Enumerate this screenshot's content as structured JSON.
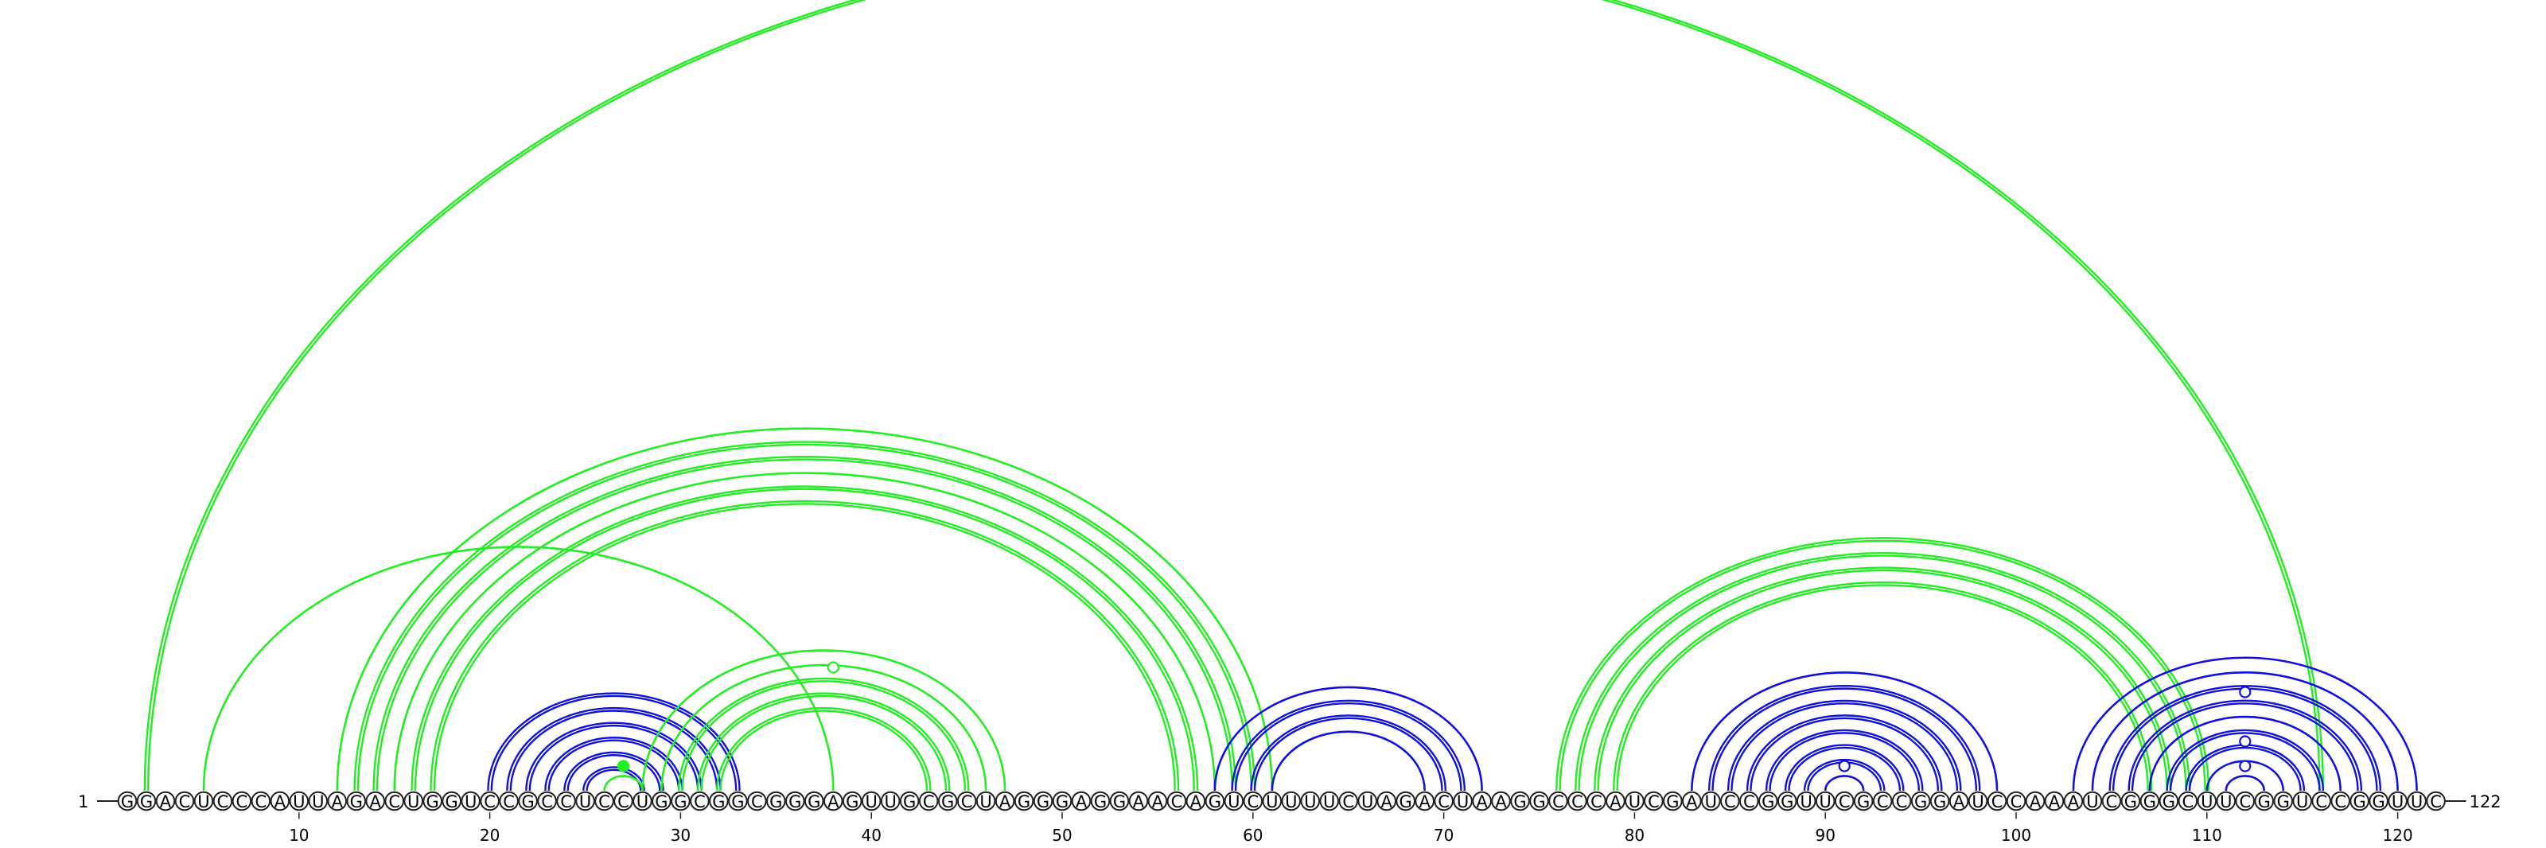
{
  "chart_data": {
    "type": "arc-diagram",
    "sequence": "GGACUCCCAUUAGACUGGUCCGCCUCCUGGCGGCGGGAGUUGCGCUAGGGAGGAACAGUCUUUUCUAGACUAAGGCCCAUCGAUCCGGUUCGCCGGAUCCAAAUCGGGCUUCGGUCCGGUUC",
    "start_label": "1",
    "end_label": "122",
    "ticks": [
      10,
      20,
      30,
      40,
      50,
      60,
      70,
      80,
      90,
      100,
      110,
      120
    ],
    "colors": {
      "green": "#22ee22",
      "blue": "#1111dd"
    },
    "pairs": [
      {
        "i": 2,
        "j": 116,
        "color": "green",
        "double": true
      },
      {
        "i": 5,
        "j": 38,
        "color": "green",
        "double": false
      },
      {
        "i": 12,
        "j": 61,
        "color": "green",
        "double": false
      },
      {
        "i": 13,
        "j": 60,
        "color": "green",
        "double": true
      },
      {
        "i": 14,
        "j": 59,
        "color": "green",
        "double": true
      },
      {
        "i": 15,
        "j": 58,
        "color": "green",
        "double": false
      },
      {
        "i": 16,
        "j": 57,
        "color": "green",
        "double": true
      },
      {
        "i": 17,
        "j": 56,
        "color": "green",
        "double": true
      },
      {
        "i": 20,
        "j": 33,
        "color": "blue",
        "double": true
      },
      {
        "i": 21,
        "j": 32,
        "color": "blue",
        "double": true
      },
      {
        "i": 22,
        "j": 31,
        "color": "blue",
        "double": true
      },
      {
        "i": 23,
        "j": 30,
        "color": "blue",
        "double": true
      },
      {
        "i": 24,
        "j": 29,
        "color": "blue",
        "double": true
      },
      {
        "i": 25,
        "j": 28,
        "color": "blue",
        "double": true
      },
      {
        "i": 26,
        "j": 28,
        "color": "green",
        "double": false,
        "bulge": true
      },
      {
        "i": 28,
        "j": 47,
        "color": "green",
        "double": false
      },
      {
        "i": 29,
        "j": 46,
        "color": "green",
        "double": false
      },
      {
        "i": 30,
        "j": 45,
        "color": "green",
        "double": true
      },
      {
        "i": 31,
        "j": 44,
        "color": "green",
        "double": true
      },
      {
        "i": 32,
        "j": 43,
        "color": "green",
        "double": true
      },
      {
        "i": 58,
        "j": 72,
        "color": "blue",
        "double": false
      },
      {
        "i": 59,
        "j": 71,
        "color": "blue",
        "double": true
      },
      {
        "i": 60,
        "j": 70,
        "color": "blue",
        "double": true
      },
      {
        "i": 61,
        "j": 69,
        "color": "blue",
        "double": false
      },
      {
        "i": 76,
        "j": 110,
        "color": "green",
        "double": true
      },
      {
        "i": 77,
        "j": 109,
        "color": "green",
        "double": true
      },
      {
        "i": 78,
        "j": 108,
        "color": "green",
        "double": true
      },
      {
        "i": 79,
        "j": 107,
        "color": "green",
        "double": true
      },
      {
        "i": 83,
        "j": 99,
        "color": "blue",
        "double": false
      },
      {
        "i": 84,
        "j": 98,
        "color": "blue",
        "double": true
      },
      {
        "i": 85,
        "j": 97,
        "color": "blue",
        "double": true
      },
      {
        "i": 86,
        "j": 96,
        "color": "blue",
        "double": true
      },
      {
        "i": 87,
        "j": 95,
        "color": "blue",
        "double": true
      },
      {
        "i": 88,
        "j": 94,
        "color": "blue",
        "double": true
      },
      {
        "i": 89,
        "j": 93,
        "color": "blue",
        "double": true
      },
      {
        "i": 90,
        "j": 92,
        "color": "blue",
        "double": false
      },
      {
        "i": 103,
        "j": 121,
        "color": "blue",
        "double": false
      },
      {
        "i": 104,
        "j": 120,
        "color": "blue",
        "double": false
      },
      {
        "i": 105,
        "j": 119,
        "color": "blue",
        "double": true
      },
      {
        "i": 106,
        "j": 118,
        "color": "blue",
        "double": true
      },
      {
        "i": 107,
        "j": 117,
        "color": "blue",
        "double": false
      },
      {
        "i": 108,
        "j": 116,
        "color": "blue",
        "double": true
      },
      {
        "i": 109,
        "j": 115,
        "color": "blue",
        "double": true
      },
      {
        "i": 110,
        "j": 114,
        "color": "blue",
        "double": false
      },
      {
        "i": 111,
        "j": 113,
        "color": "blue",
        "double": false
      }
    ],
    "markers": [
      {
        "pos": 27,
        "color": "green",
        "filled": true,
        "level": 2
      },
      {
        "pos": 38,
        "color": "green",
        "filled": false,
        "level": 10
      },
      {
        "pos": 91,
        "color": "blue",
        "filled": false,
        "level": 2
      },
      {
        "pos": 112,
        "color": "blue",
        "filled": false,
        "level": 2
      },
      {
        "pos": 112,
        "color": "blue",
        "filled": false,
        "level": 4
      },
      {
        "pos": 112,
        "color": "blue",
        "filled": false,
        "level": 8
      }
    ]
  }
}
